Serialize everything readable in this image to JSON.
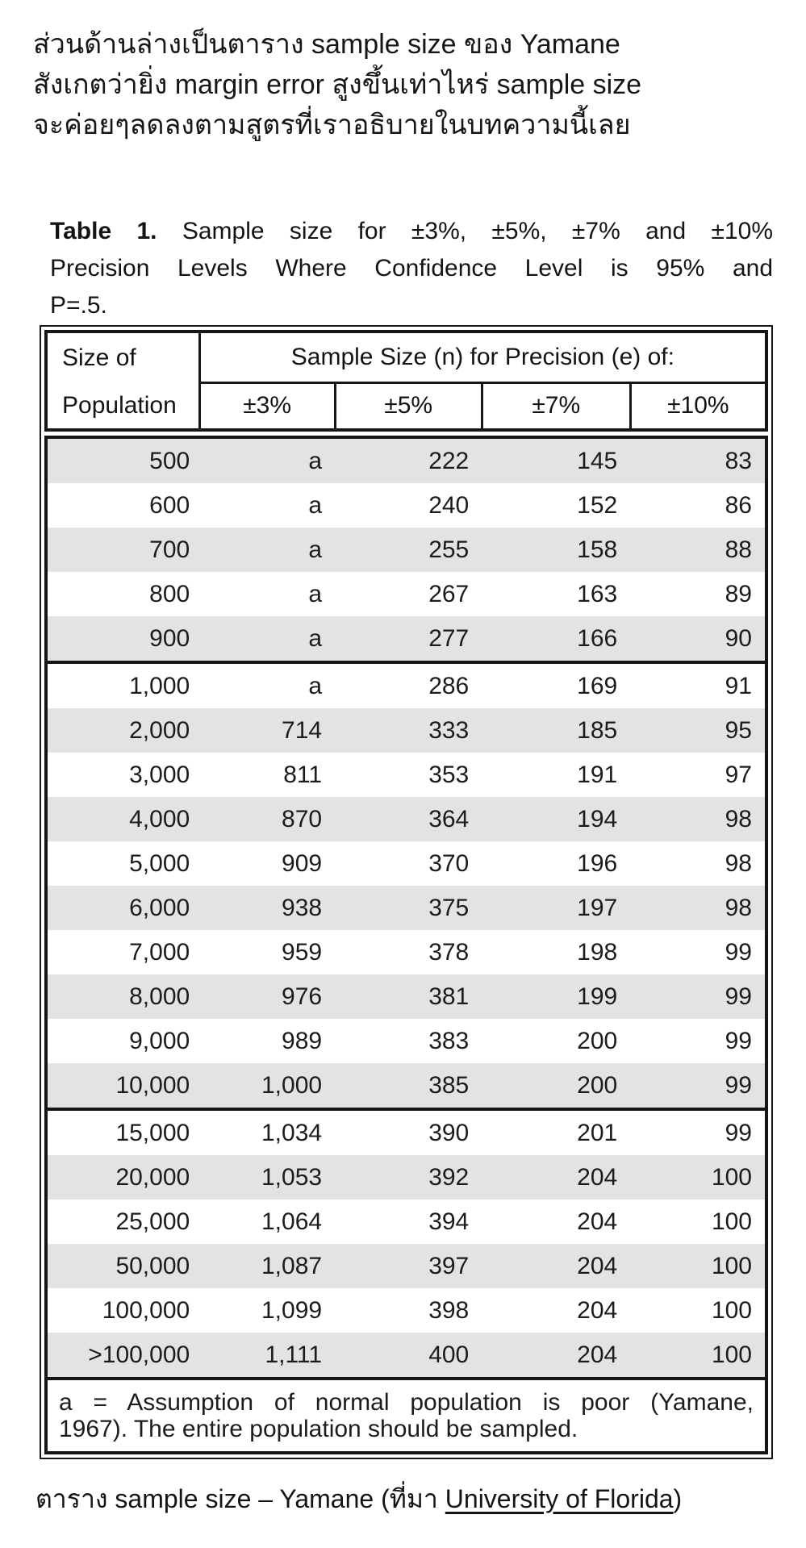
{
  "intro": {
    "lines": [
      "ส่วนด้านล่างเป็นตาราง sample size ของ Yamane",
      "สังเกตว่ายิ่ง margin error สูงขึ้นเท่าไหร่ sample size",
      "จะค่อยๆลดลงตามสูตรที่เราอธิบายในบทความนี้เลย"
    ]
  },
  "table": {
    "title": {
      "label": "Table 1.",
      "line1_rest": "Sample size for ±3%, ±5%, ±7% and ±10%",
      "line2": "Precision Levels Where Confidence Level is 95% and",
      "line3": "P=.5."
    },
    "header": {
      "population_line1": "Size of",
      "population_line2": "Population",
      "sample_size_label": "Sample Size (n) for Precision (e) of:",
      "precision_levels": [
        "±3%",
        "±5%",
        "±7%",
        "±10%"
      ]
    },
    "groups": [
      {
        "rows": [
          [
            "500",
            "a",
            "222",
            "145",
            "83"
          ],
          [
            "600",
            "a",
            "240",
            "152",
            "86"
          ],
          [
            "700",
            "a",
            "255",
            "158",
            "88"
          ],
          [
            "800",
            "a",
            "267",
            "163",
            "89"
          ],
          [
            "900",
            "a",
            "277",
            "166",
            "90"
          ]
        ]
      },
      {
        "rows": [
          [
            "1,000",
            "a",
            "286",
            "169",
            "91"
          ],
          [
            "2,000",
            "714",
            "333",
            "185",
            "95"
          ],
          [
            "3,000",
            "811",
            "353",
            "191",
            "97"
          ],
          [
            "4,000",
            "870",
            "364",
            "194",
            "98"
          ],
          [
            "5,000",
            "909",
            "370",
            "196",
            "98"
          ],
          [
            "6,000",
            "938",
            "375",
            "197",
            "98"
          ],
          [
            "7,000",
            "959",
            "378",
            "198",
            "99"
          ],
          [
            "8,000",
            "976",
            "381",
            "199",
            "99"
          ],
          [
            "9,000",
            "989",
            "383",
            "200",
            "99"
          ],
          [
            "10,000",
            "1,000",
            "385",
            "200",
            "99"
          ]
        ]
      },
      {
        "rows": [
          [
            "15,000",
            "1,034",
            "390",
            "201",
            "99"
          ],
          [
            "20,000",
            "1,053",
            "392",
            "204",
            "100"
          ],
          [
            "25,000",
            "1,064",
            "394",
            "204",
            "100"
          ],
          [
            "50,000",
            "1,087",
            "397",
            "204",
            "100"
          ],
          [
            "100,000",
            "1,099",
            "398",
            "204",
            "100"
          ],
          [
            ">100,000",
            "1,111",
            "400",
            "204",
            "100"
          ]
        ]
      }
    ],
    "footnote": {
      "line1": "a = Assumption of normal population is poor (Yamane,",
      "line2": "1967).  The entire population should be sampled."
    }
  },
  "caption": {
    "prefix": "ตาราง sample size – Yamane (ที่มา ",
    "link_text": "University of Florida",
    "suffix": ")"
  },
  "colors": {
    "stripe": "#e3e3e3",
    "border": "#161616",
    "text": "#1c1c1c"
  }
}
